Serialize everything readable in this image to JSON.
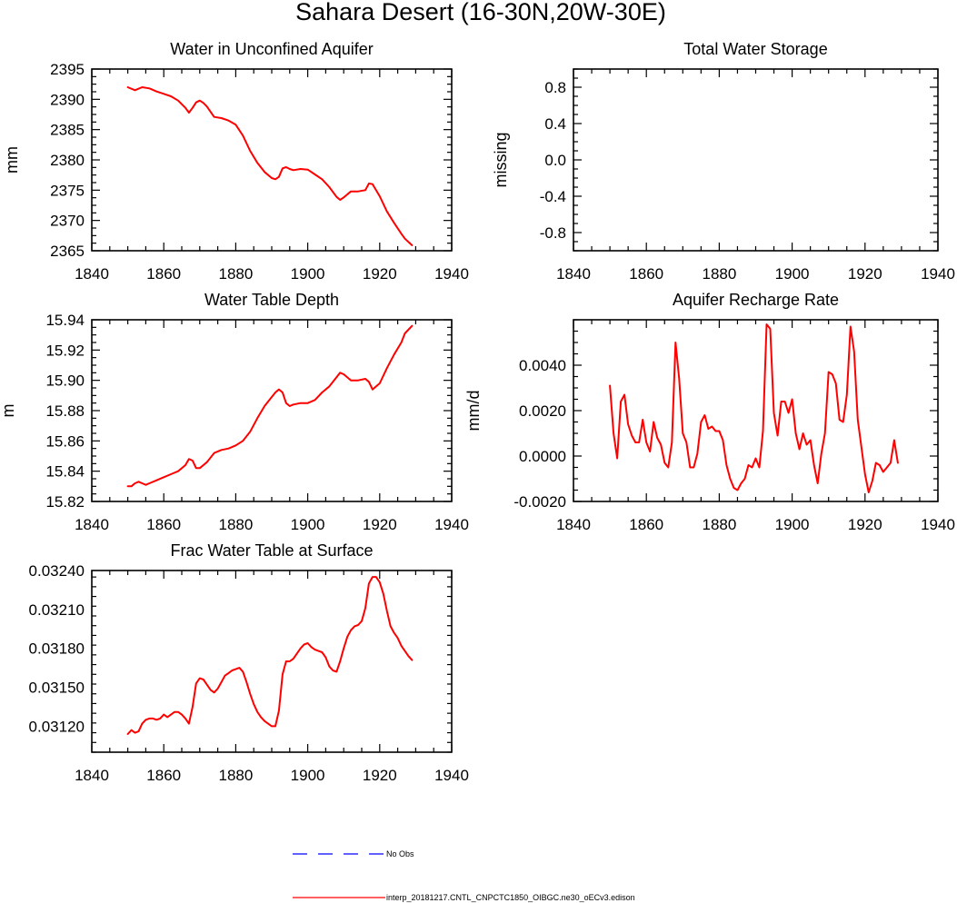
{
  "title": "Sahara Desert (16-30N,20W-30E)",
  "series_colors": {
    "model": "#ff0000",
    "obs": "#0000ff"
  },
  "legend": {
    "obs_label": "No Obs",
    "model_label": "interp_20181217.CNTL_CNPCTC1850_OIBGC.ne30_oECv3.edison"
  },
  "chart_data": [
    {
      "id": "unconfined",
      "type": "line",
      "title": "Water in Unconfined Aquifer",
      "xlabel": "",
      "ylabel": "mm",
      "xlim": [
        1840,
        1940
      ],
      "ylim": [
        2365,
        2395
      ],
      "xticks": [
        "1840",
        "1860",
        "1880",
        "1900",
        "1920",
        "1940"
      ],
      "yticks": [
        "2365",
        "2370",
        "2375",
        "2380",
        "2385",
        "2390",
        "2395"
      ],
      "series": [
        {
          "name": "interp_20181217.CNTL_CNPCTC1850_OIBGC.ne30_oECv3.edison",
          "x": [
            1850,
            1852,
            1854,
            1856,
            1858,
            1860,
            1862,
            1864,
            1866,
            1867,
            1868,
            1869,
            1870,
            1871,
            1872,
            1874,
            1876,
            1878,
            1880,
            1882,
            1884,
            1886,
            1888,
            1890,
            1891,
            1892,
            1893,
            1894,
            1895,
            1896,
            1898,
            1900,
            1902,
            1904,
            1906,
            1908,
            1909,
            1910,
            1912,
            1914,
            1916,
            1917,
            1918,
            1920,
            1922,
            1924,
            1926,
            1927,
            1929
          ],
          "y": [
            2392,
            2391.5,
            2392,
            2391.8,
            2391.3,
            2390.9,
            2390.5,
            2389.8,
            2388.6,
            2387.8,
            2388.6,
            2389.5,
            2389.8,
            2389.4,
            2388.8,
            2387.1,
            2386.9,
            2386.5,
            2385.8,
            2384,
            2381.5,
            2379.5,
            2378,
            2377,
            2376.8,
            2377.2,
            2378.6,
            2378.8,
            2378.5,
            2378.3,
            2378.5,
            2378.4,
            2377.6,
            2376.8,
            2375.5,
            2373.9,
            2373.4,
            2373.8,
            2374.8,
            2374.8,
            2375,
            2376.1,
            2376,
            2374,
            2371.5,
            2369.6,
            2367.8,
            2367,
            2365.9
          ]
        }
      ]
    },
    {
      "id": "tws",
      "type": "line",
      "title": "Total Water Storage",
      "xlabel": "",
      "ylabel": "missing",
      "xlim": [
        1840,
        1940
      ],
      "ylim": [
        -1.0,
        1.0
      ],
      "xticks": [
        "1840",
        "1860",
        "1880",
        "1900",
        "1920",
        "1940"
      ],
      "yticks": [
        "-0.8",
        "-0.4",
        "0.0",
        "0.4",
        "0.8"
      ],
      "series": []
    },
    {
      "id": "wtd",
      "type": "line",
      "title": "Water Table Depth",
      "xlabel": "",
      "ylabel": "m",
      "xlim": [
        1840,
        1940
      ],
      "ylim": [
        15.82,
        15.94
      ],
      "xticks": [
        "1840",
        "1860",
        "1880",
        "1900",
        "1920",
        "1940"
      ],
      "yticks": [
        "15.82",
        "15.84",
        "15.86",
        "15.88",
        "15.90",
        "15.92",
        "15.94"
      ],
      "series": [
        {
          "name": "interp_20181217.CNTL_CNPCTC1850_OIBGC.ne30_oECv3.edison",
          "x": [
            1850,
            1851,
            1852,
            1853,
            1854,
            1855,
            1856,
            1858,
            1860,
            1862,
            1864,
            1866,
            1867,
            1868,
            1869,
            1870,
            1872,
            1874,
            1876,
            1878,
            1880,
            1882,
            1884,
            1886,
            1888,
            1890,
            1891,
            1892,
            1893,
            1894,
            1895,
            1896,
            1898,
            1900,
            1902,
            1904,
            1906,
            1908,
            1909,
            1910,
            1912,
            1914,
            1916,
            1917,
            1918,
            1920,
            1922,
            1924,
            1926,
            1927,
            1929
          ],
          "y": [
            15.83,
            15.83,
            15.832,
            15.833,
            15.832,
            15.831,
            15.832,
            15.834,
            15.836,
            15.838,
            15.84,
            15.844,
            15.848,
            15.847,
            15.842,
            15.842,
            15.846,
            15.852,
            15.854,
            15.855,
            15.857,
            15.86,
            15.866,
            15.875,
            15.883,
            15.889,
            15.892,
            15.894,
            15.892,
            15.885,
            15.883,
            15.884,
            15.885,
            15.885,
            15.887,
            15.892,
            15.896,
            15.902,
            15.905,
            15.904,
            15.9,
            15.9,
            15.901,
            15.899,
            15.894,
            15.898,
            15.908,
            15.917,
            15.925,
            15.931,
            15.936
          ]
        }
      ]
    },
    {
      "id": "recharge",
      "type": "line",
      "title": "Aquifer Recharge Rate",
      "xlabel": "",
      "ylabel": "mm/d",
      "xlim": [
        1840,
        1940
      ],
      "ylim": [
        -0.002,
        0.006
      ],
      "xticks": [
        "1840",
        "1860",
        "1880",
        "1900",
        "1920",
        "1940"
      ],
      "yticks": [
        "-0.0020",
        "0.0000",
        "0.0020",
        "0.0040"
      ],
      "series": [
        {
          "name": "interp_20181217.CNTL_CNPCTC1850_OIBGC.ne30_oECv3.edison",
          "x": [
            1850,
            1851,
            1852,
            1853,
            1854,
            1855,
            1856,
            1857,
            1858,
            1859,
            1860,
            1861,
            1862,
            1863,
            1864,
            1865,
            1866,
            1867,
            1868,
            1869,
            1870,
            1871,
            1872,
            1873,
            1874,
            1875,
            1876,
            1877,
            1878,
            1879,
            1880,
            1881,
            1882,
            1883,
            1884,
            1885,
            1886,
            1887,
            1888,
            1889,
            1890,
            1891,
            1892,
            1893,
            1894,
            1895,
            1896,
            1897,
            1898,
            1899,
            1900,
            1901,
            1902,
            1903,
            1904,
            1905,
            1906,
            1907,
            1908,
            1909,
            1910,
            1911,
            1912,
            1913,
            1914,
            1915,
            1916,
            1917,
            1918,
            1919,
            1920,
            1921,
            1922,
            1923,
            1924,
            1925,
            1926,
            1927,
            1928,
            1929
          ],
          "y": [
            0.0031,
            0.001,
            -0.0001,
            0.0024,
            0.0027,
            0.0014,
            0.0009,
            0.0006,
            0.0006,
            0.0016,
            0.0006,
            0.0002,
            0.0015,
            0.0008,
            0.0005,
            -0.0003,
            -0.0005,
            0.0006,
            0.005,
            0.0034,
            0.001,
            0.0006,
            -0.0005,
            -0.0005,
            0.0001,
            0.0015,
            0.0018,
            0.0012,
            0.0013,
            0.0011,
            0.0011,
            0.0007,
            -0.0004,
            -0.001,
            -0.0014,
            -0.0015,
            -0.0012,
            -0.001,
            -0.0004,
            -0.0005,
            -0.0001,
            -0.0005,
            0.0011,
            0.0058,
            0.0056,
            0.0019,
            0.0009,
            0.0024,
            0.0024,
            0.0019,
            0.0025,
            0.001,
            0.0003,
            0.001,
            0.0005,
            0.0007,
            -0.0004,
            -0.0012,
            0.0001,
            0.001,
            0.0037,
            0.0036,
            0.0032,
            0.0016,
            0.0015,
            0.0027,
            0.0057,
            0.0046,
            0.0016,
            0.0004,
            -0.0008,
            -0.0016,
            -0.0011,
            -0.0003,
            -0.0004,
            -0.0007,
            -0.0005,
            -0.0003,
            0.0007,
            -0.0003
          ]
        }
      ]
    },
    {
      "id": "fracwt",
      "type": "line",
      "title": "Frac Water Table at Surface",
      "xlabel": "",
      "ylabel": "",
      "xlim": [
        1840,
        1940
      ],
      "ylim": [
        0.031,
        0.0324
      ],
      "xticks": [
        "1840",
        "1860",
        "1880",
        "1900",
        "1920",
        "1940"
      ],
      "yticks": [
        "0.03120",
        "0.03150",
        "0.03180",
        "0.03210",
        "0.03240"
      ],
      "series": [
        {
          "name": "interp_20181217.CNTL_CNPCTC1850_OIBGC.ne30_oECv3.edison",
          "x": [
            1850,
            1851,
            1852,
            1853,
            1854,
            1855,
            1856,
            1857,
            1858,
            1859,
            1860,
            1861,
            1862,
            1863,
            1864,
            1865,
            1866,
            1867,
            1868,
            1869,
            1870,
            1871,
            1872,
            1873,
            1874,
            1875,
            1876,
            1877,
            1878,
            1879,
            1880,
            1881,
            1882,
            1883,
            1884,
            1885,
            1886,
            1887,
            1888,
            1889,
            1890,
            1891,
            1892,
            1893,
            1894,
            1895,
            1896,
            1897,
            1898,
            1899,
            1900,
            1901,
            1902,
            1903,
            1904,
            1905,
            1906,
            1907,
            1908,
            1909,
            1910,
            1911,
            1912,
            1913,
            1914,
            1915,
            1916,
            1917,
            1918,
            1919,
            1920,
            1921,
            1922,
            1923,
            1924,
            1925,
            1926,
            1927,
            1928,
            1929
          ],
          "y": [
            0.03114,
            0.03117,
            0.03115,
            0.03116,
            0.03122,
            0.03125,
            0.03126,
            0.03126,
            0.03125,
            0.03126,
            0.03129,
            0.03127,
            0.03129,
            0.03131,
            0.03131,
            0.03129,
            0.03126,
            0.03122,
            0.03135,
            0.03153,
            0.03157,
            0.03156,
            0.03152,
            0.03148,
            0.03146,
            0.03149,
            0.03154,
            0.03159,
            0.03161,
            0.03163,
            0.03164,
            0.03165,
            0.03162,
            0.03154,
            0.03145,
            0.03137,
            0.03131,
            0.03127,
            0.03124,
            0.03122,
            0.0312,
            0.0312,
            0.03132,
            0.0316,
            0.0317,
            0.0317,
            0.03172,
            0.03176,
            0.0318,
            0.03183,
            0.03184,
            0.03181,
            0.03179,
            0.03178,
            0.03177,
            0.03173,
            0.03166,
            0.03163,
            0.03162,
            0.0317,
            0.0318,
            0.03189,
            0.03194,
            0.03197,
            0.03198,
            0.03201,
            0.03211,
            0.0323,
            0.03235,
            0.03235,
            0.03231,
            0.03222,
            0.03209,
            0.03197,
            0.03192,
            0.03188,
            0.03182,
            0.03178,
            0.03174,
            0.03171
          ]
        }
      ]
    }
  ]
}
